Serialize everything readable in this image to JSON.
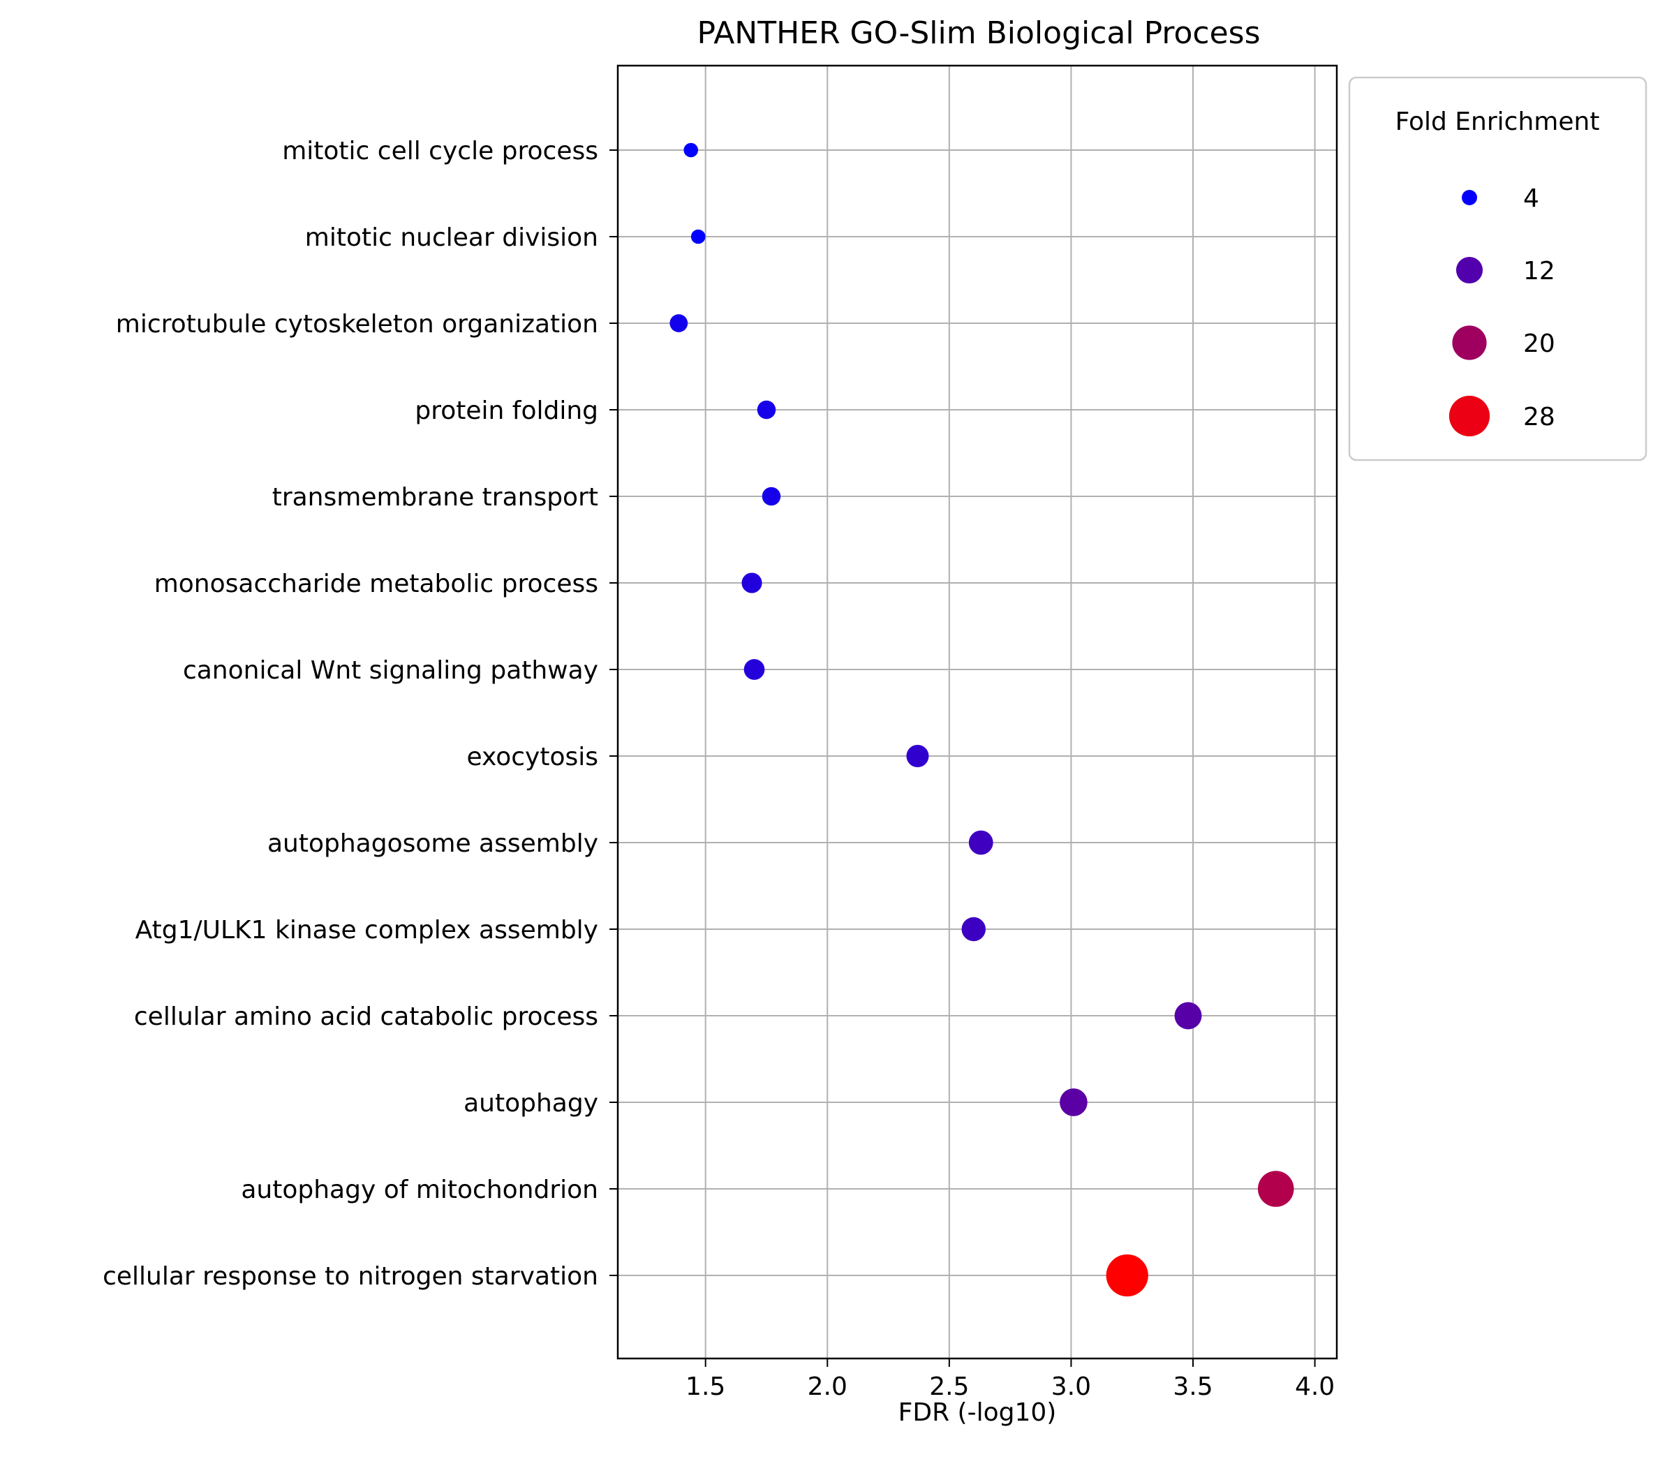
{
  "chart_data": {
    "type": "scatter",
    "title": "PANTHER GO-Slim Biological Process",
    "xlabel": "FDR (-log10)",
    "ylabel": "",
    "xlim": [
      1.14,
      4.09
    ],
    "xticks": [
      "1.5",
      "2.0",
      "2.5",
      "3.0",
      "3.5",
      "4.0"
    ],
    "grid": true,
    "categories": [
      "mitotic cell cycle process",
      "mitotic nuclear division",
      "microtubule cytoskeleton organization",
      "protein folding",
      "transmembrane transport",
      "monosaccharide metabolic process",
      "canonical Wnt signaling pathway",
      "exocytosis",
      "autophagosome assembly",
      "Atg1/ULK1 kinase complex assembly",
      "cellular amino acid catabolic process",
      "autophagy",
      "autophagy of mitochondrion",
      "cellular response to nitrogen starvation"
    ],
    "fdr_neg_log10": [
      1.44,
      1.47,
      1.39,
      1.75,
      1.77,
      1.69,
      1.7,
      2.37,
      2.63,
      2.6,
      3.48,
      3.01,
      3.84,
      3.23
    ],
    "fold_enrichment": [
      3.5,
      3.5,
      5.5,
      5.8,
      5.8,
      7.0,
      7.3,
      8.5,
      10.0,
      9.8,
      12.5,
      13.0,
      22.0,
      30.0
    ],
    "color_scale": {
      "low": "#0000ff",
      "high": "#ff0000",
      "min": 3.5,
      "max": 30
    },
    "legend": {
      "title": "Fold Enrichment",
      "position": "outside-top-right",
      "entries": [
        {
          "label": "4",
          "value": 4
        },
        {
          "label": "12",
          "value": 12
        },
        {
          "label": "20",
          "value": 20
        },
        {
          "label": "28",
          "value": 28
        }
      ]
    }
  }
}
